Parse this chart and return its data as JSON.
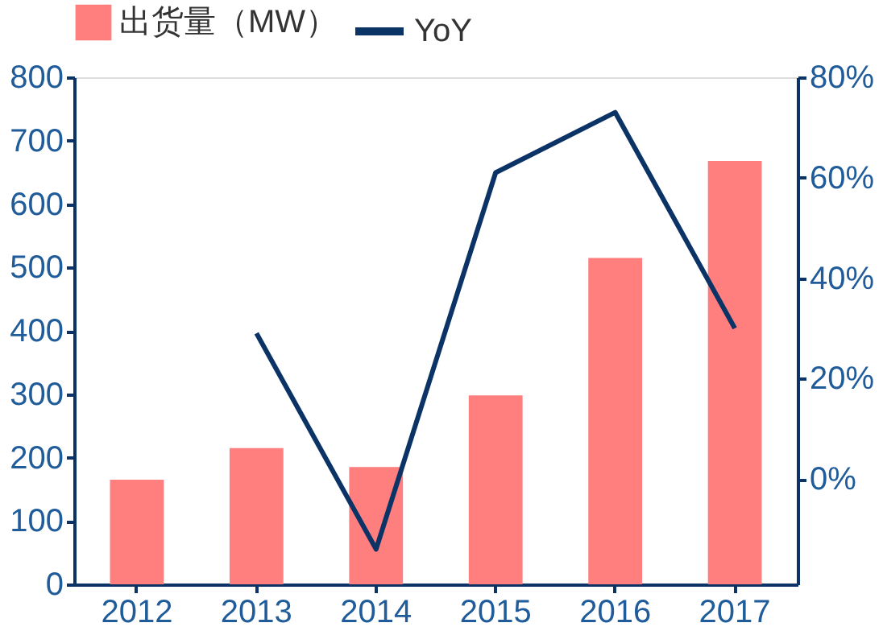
{
  "chart_data": {
    "type": "bar",
    "categories": [
      "2012",
      "2013",
      "2014",
      "2015",
      "2016",
      "2017"
    ],
    "series": [
      {
        "name": "出货量（MW）",
        "color": "#ff7f7f",
        "values": [
          165,
          215,
          185,
          298,
          515,
          668
        ]
      },
      {
        "name": "YoY",
        "type": "line",
        "axis": "y2",
        "color": "#0b3366",
        "values": [
          null,
          29,
          -14,
          61,
          73,
          30
        ]
      }
    ],
    "ylim": [
      0,
      800
    ],
    "yticks": [
      0,
      100,
      200,
      300,
      400,
      500,
      600,
      700,
      800
    ],
    "y2lim": [
      -21,
      80
    ],
    "y2ticks": [
      {
        "value": 0,
        "label": "0%"
      },
      {
        "value": 20,
        "label": "20%"
      },
      {
        "value": 40,
        "label": "40%"
      },
      {
        "value": 60,
        "label": "60%"
      },
      {
        "value": 80,
        "label": "80%"
      }
    ],
    "grid": false,
    "legend": "top",
    "line_style": "solid",
    "marker": "none"
  }
}
